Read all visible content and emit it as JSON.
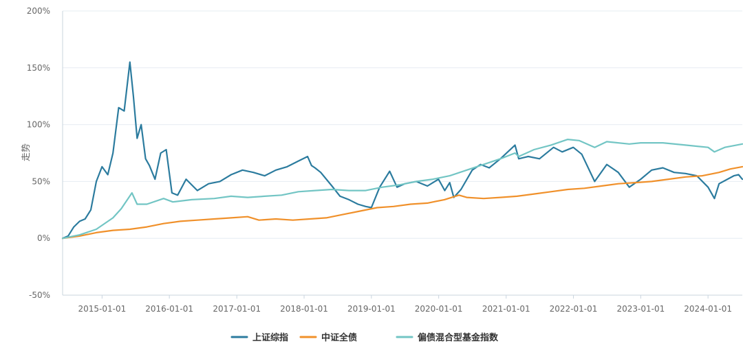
{
  "chart_data": {
    "type": "line",
    "ylabel": "走势",
    "y_unit": "%",
    "ylim": [
      -50,
      200
    ],
    "y_ticks": [
      "200%",
      "150%",
      "100%",
      "50%",
      "0%",
      "-50%"
    ],
    "y_tick_values": [
      200,
      150,
      100,
      50,
      0,
      -50
    ],
    "x_range": [
      "2014-06-01",
      "2024-07-05"
    ],
    "x_ticks": [
      "2015-01-01",
      "2016-01-01",
      "2017-01-01",
      "2018-01-01",
      "2019-01-01",
      "2020-01-01",
      "2021-01-01",
      "2022-01-01",
      "2023-01-01",
      "2024-01-01"
    ],
    "grid": true,
    "legend_position": "bottom",
    "series": [
      {
        "name": "上证综指",
        "color": "#2b7b9e",
        "points": [
          [
            "2014-06-01",
            0
          ],
          [
            "2014-07-01",
            2
          ],
          [
            "2014-08-01",
            10
          ],
          [
            "2014-09-01",
            15
          ],
          [
            "2014-10-01",
            17
          ],
          [
            "2014-11-01",
            25
          ],
          [
            "2014-12-01",
            50
          ],
          [
            "2015-01-01",
            63
          ],
          [
            "2015-02-01",
            56
          ],
          [
            "2015-03-01",
            75
          ],
          [
            "2015-04-01",
            115
          ],
          [
            "2015-05-01",
            112
          ],
          [
            "2015-06-01",
            155
          ],
          [
            "2015-06-20",
            125
          ],
          [
            "2015-07-10",
            88
          ],
          [
            "2015-08-01",
            100
          ],
          [
            "2015-08-25",
            70
          ],
          [
            "2015-09-15",
            64
          ],
          [
            "2015-10-15",
            52
          ],
          [
            "2015-11-15",
            75
          ],
          [
            "2015-12-15",
            78
          ],
          [
            "2016-01-15",
            40
          ],
          [
            "2016-02-15",
            38
          ],
          [
            "2016-04-01",
            52
          ],
          [
            "2016-06-01",
            42
          ],
          [
            "2016-08-01",
            48
          ],
          [
            "2016-10-01",
            50
          ],
          [
            "2016-12-01",
            56
          ],
          [
            "2017-02-01",
            60
          ],
          [
            "2017-04-01",
            58
          ],
          [
            "2017-06-01",
            55
          ],
          [
            "2017-08-01",
            60
          ],
          [
            "2017-10-01",
            63
          ],
          [
            "2017-12-01",
            68
          ],
          [
            "2018-01-20",
            72
          ],
          [
            "2018-02-10",
            64
          ],
          [
            "2018-03-01",
            62
          ],
          [
            "2018-04-01",
            58
          ],
          [
            "2018-06-01",
            46
          ],
          [
            "2018-07-15",
            37
          ],
          [
            "2018-09-01",
            34
          ],
          [
            "2018-10-20",
            30
          ],
          [
            "2018-12-01",
            28
          ],
          [
            "2019-01-01",
            27
          ],
          [
            "2019-02-15",
            45
          ],
          [
            "2019-04-10",
            59
          ],
          [
            "2019-05-20",
            45
          ],
          [
            "2019-07-01",
            48
          ],
          [
            "2019-09-01",
            50
          ],
          [
            "2019-11-01",
            46
          ],
          [
            "2019-12-31",
            52
          ],
          [
            "2020-02-03",
            42
          ],
          [
            "2020-03-01",
            49
          ],
          [
            "2020-03-23",
            36
          ],
          [
            "2020-05-01",
            43
          ],
          [
            "2020-07-01",
            60
          ],
          [
            "2020-08-15",
            65
          ],
          [
            "2020-10-01",
            62
          ],
          [
            "2020-12-01",
            70
          ],
          [
            "2021-02-18",
            82
          ],
          [
            "2021-03-10",
            70
          ],
          [
            "2021-05-01",
            72
          ],
          [
            "2021-07-01",
            70
          ],
          [
            "2021-09-15",
            80
          ],
          [
            "2021-11-01",
            76
          ],
          [
            "2021-12-31",
            80
          ],
          [
            "2022-02-15",
            74
          ],
          [
            "2022-04-26",
            50
          ],
          [
            "2022-07-01",
            65
          ],
          [
            "2022-09-01",
            58
          ],
          [
            "2022-10-31",
            45
          ],
          [
            "2023-01-01",
            52
          ],
          [
            "2023-03-01",
            60
          ],
          [
            "2023-05-01",
            62
          ],
          [
            "2023-07-01",
            58
          ],
          [
            "2023-09-01",
            57
          ],
          [
            "2023-11-01",
            55
          ],
          [
            "2024-01-01",
            45
          ],
          [
            "2024-02-05",
            35
          ],
          [
            "2024-03-01",
            48
          ],
          [
            "2024-05-20",
            55
          ],
          [
            "2024-06-15",
            56
          ],
          [
            "2024-07-05",
            52
          ]
        ]
      },
      {
        "name": "中证全债",
        "color": "#f0902a",
        "points": [
          [
            "2014-06-01",
            0
          ],
          [
            "2014-09-01",
            2
          ],
          [
            "2014-12-01",
            5
          ],
          [
            "2015-03-01",
            7
          ],
          [
            "2015-06-01",
            8
          ],
          [
            "2015-09-01",
            10
          ],
          [
            "2015-12-01",
            13
          ],
          [
            "2016-03-01",
            15
          ],
          [
            "2016-06-01",
            16
          ],
          [
            "2016-09-01",
            17
          ],
          [
            "2016-12-01",
            18
          ],
          [
            "2017-03-01",
            19
          ],
          [
            "2017-05-01",
            16
          ],
          [
            "2017-08-01",
            17
          ],
          [
            "2017-11-01",
            16
          ],
          [
            "2018-02-01",
            17
          ],
          [
            "2018-05-01",
            18
          ],
          [
            "2018-08-01",
            21
          ],
          [
            "2018-11-01",
            24
          ],
          [
            "2019-02-01",
            27
          ],
          [
            "2019-05-01",
            28
          ],
          [
            "2019-08-01",
            30
          ],
          [
            "2019-11-01",
            31
          ],
          [
            "2020-02-01",
            34
          ],
          [
            "2020-04-20",
            38
          ],
          [
            "2020-06-01",
            36
          ],
          [
            "2020-09-01",
            35
          ],
          [
            "2020-12-01",
            36
          ],
          [
            "2021-03-01",
            37
          ],
          [
            "2021-06-01",
            39
          ],
          [
            "2021-09-01",
            41
          ],
          [
            "2021-12-01",
            43
          ],
          [
            "2022-03-01",
            44
          ],
          [
            "2022-06-01",
            46
          ],
          [
            "2022-09-01",
            48
          ],
          [
            "2022-12-01",
            49
          ],
          [
            "2023-03-01",
            50
          ],
          [
            "2023-06-01",
            52
          ],
          [
            "2023-09-01",
            54
          ],
          [
            "2023-12-01",
            55
          ],
          [
            "2024-03-01",
            58
          ],
          [
            "2024-05-01",
            61
          ],
          [
            "2024-07-05",
            63
          ]
        ]
      },
      {
        "name": "偏债混合型基金指数",
        "color": "#72c5c4",
        "points": [
          [
            "2014-06-01",
            0
          ],
          [
            "2014-09-01",
            3
          ],
          [
            "2014-12-01",
            8
          ],
          [
            "2015-03-01",
            18
          ],
          [
            "2015-04-15",
            26
          ],
          [
            "2015-06-12",
            40
          ],
          [
            "2015-07-10",
            30
          ],
          [
            "2015-09-01",
            30
          ],
          [
            "2015-12-01",
            35
          ],
          [
            "2016-01-20",
            32
          ],
          [
            "2016-05-01",
            34
          ],
          [
            "2016-09-01",
            35
          ],
          [
            "2016-12-01",
            37
          ],
          [
            "2017-03-01",
            36
          ],
          [
            "2017-06-01",
            37
          ],
          [
            "2017-09-01",
            38
          ],
          [
            "2017-12-01",
            41
          ],
          [
            "2018-03-01",
            42
          ],
          [
            "2018-06-01",
            43
          ],
          [
            "2018-09-01",
            42
          ],
          [
            "2018-12-01",
            42
          ],
          [
            "2019-03-01",
            45
          ],
          [
            "2019-06-01",
            47
          ],
          [
            "2019-09-01",
            50
          ],
          [
            "2019-12-01",
            52
          ],
          [
            "2020-03-01",
            55
          ],
          [
            "2020-06-01",
            60
          ],
          [
            "2020-09-01",
            65
          ],
          [
            "2020-12-01",
            70
          ],
          [
            "2021-02-18",
            75
          ],
          [
            "2021-03-10",
            72
          ],
          [
            "2021-06-01",
            78
          ],
          [
            "2021-09-01",
            82
          ],
          [
            "2021-12-01",
            87
          ],
          [
            "2022-02-01",
            86
          ],
          [
            "2022-04-26",
            80
          ],
          [
            "2022-07-01",
            85
          ],
          [
            "2022-10-31",
            83
          ],
          [
            "2023-01-01",
            84
          ],
          [
            "2023-05-01",
            84
          ],
          [
            "2023-09-01",
            82
          ],
          [
            "2024-01-01",
            80
          ],
          [
            "2024-02-05",
            76
          ],
          [
            "2024-04-01",
            80
          ],
          [
            "2024-07-05",
            83
          ]
        ]
      }
    ]
  }
}
